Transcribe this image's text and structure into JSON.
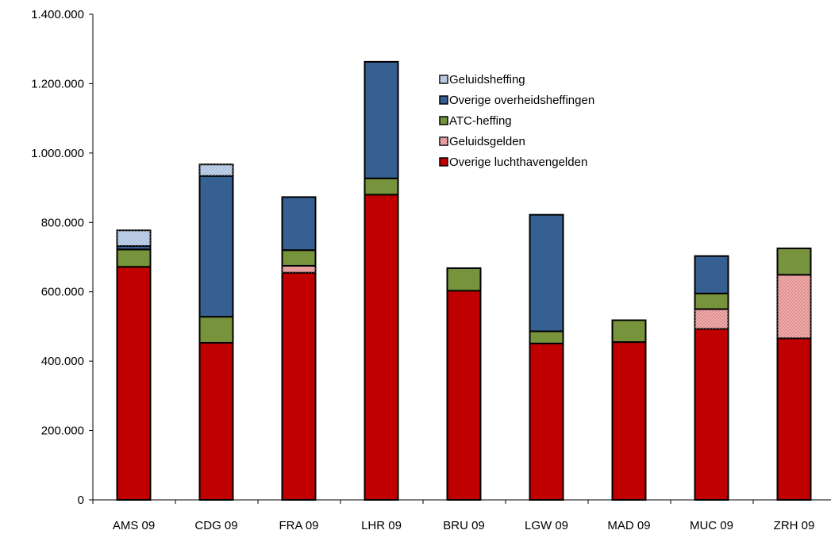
{
  "chart_data": {
    "type": "bar",
    "stacked": true,
    "categories": [
      "AMS 09",
      "CDG 09",
      "FRA 09",
      "LHR 09",
      "BRU 09",
      "LGW 09",
      "MAD 09",
      "MUC 09",
      "ZRH 09"
    ],
    "series": [
      {
        "name": "Overige luchthavengelden",
        "color": "#c00000",
        "pattern": false,
        "values": [
          672000,
          453000,
          655000,
          880000,
          603000,
          451000,
          455000,
          493000,
          466000
        ]
      },
      {
        "name": "Geluidsgelden",
        "color": "#e38b8b",
        "pattern": true,
        "values": [
          0,
          0,
          20000,
          0,
          0,
          0,
          0,
          57000,
          183000
        ]
      },
      {
        "name": "ATC-heffing",
        "color": "#77933c",
        "pattern": false,
        "values": [
          50000,
          75000,
          45000,
          47000,
          65000,
          35000,
          63000,
          45000,
          76000
        ]
      },
      {
        "name": "Overige overheidsheffingen",
        "color": "#376092",
        "pattern": false,
        "values": [
          10000,
          406000,
          153000,
          336000,
          0,
          336000,
          0,
          108000,
          0
        ]
      },
      {
        "name": "Geluidsheffing",
        "color": "#a9bfdf",
        "pattern": true,
        "values": [
          45000,
          33000,
          0,
          0,
          0,
          0,
          0,
          0,
          0
        ]
      }
    ],
    "legend_order": [
      "Geluidsheffing",
      "Overige overheidsheffingen",
      "ATC-heffing",
      "Geluidsgelden",
      "Overige luchthavengelden"
    ],
    "y_ticks": [
      "0",
      "200.000",
      "400.000",
      "600.000",
      "800.000",
      "1.000.000",
      "1.200.000",
      "1.400.000"
    ],
    "ylim": [
      0,
      1400000
    ],
    "title": "",
    "xlabel": "",
    "ylabel": "",
    "grid": false,
    "legend_position": "top-center"
  }
}
